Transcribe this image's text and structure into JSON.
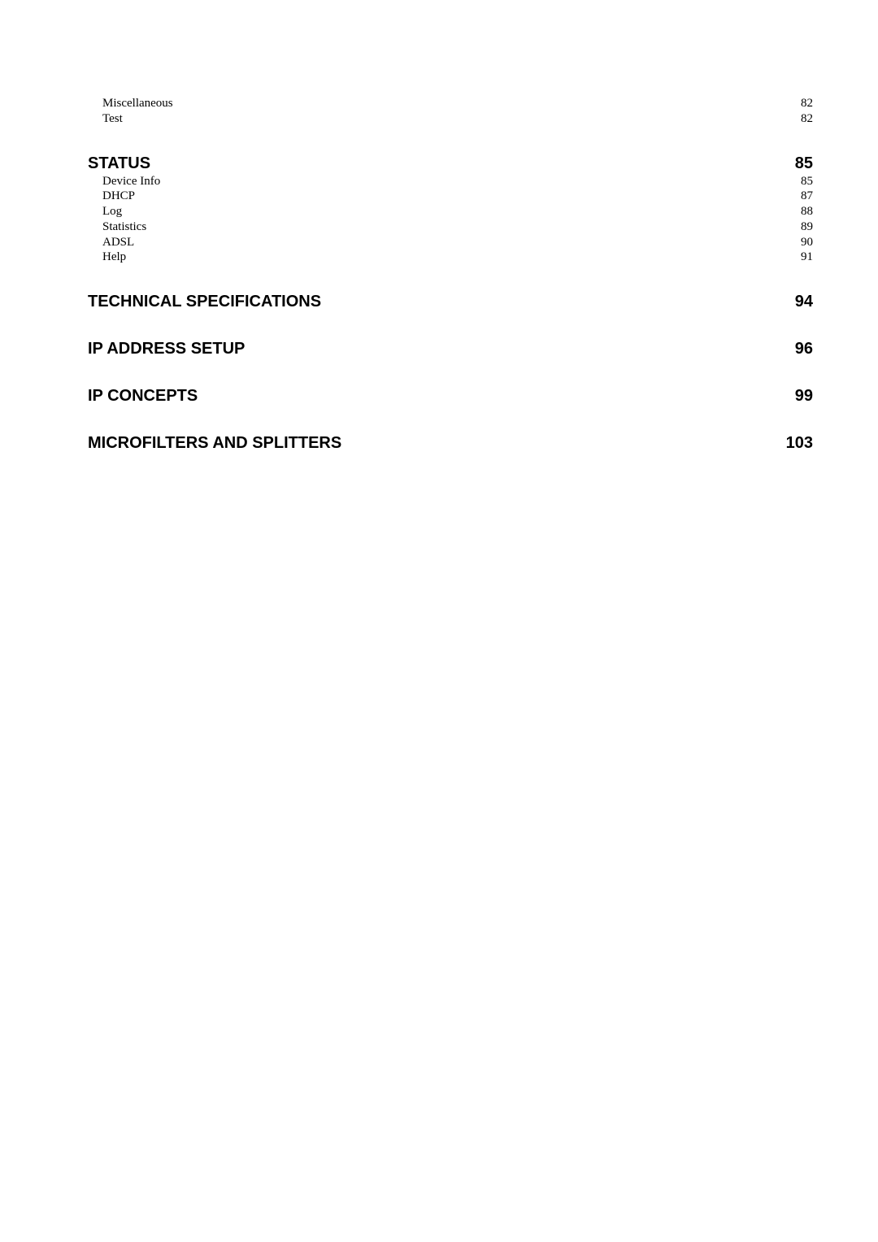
{
  "toc": {
    "orphan_subs": [
      {
        "label": "Miscellaneous",
        "page": "82"
      },
      {
        "label": "Test",
        "page": "82"
      }
    ],
    "sections": [
      {
        "heading": "STATUS",
        "page": "85",
        "subs": [
          {
            "label": "Device Info",
            "page": "85"
          },
          {
            "label": "DHCP",
            "page": "87"
          },
          {
            "label": "Log",
            "page": "88"
          },
          {
            "label": "Statistics",
            "page": "89"
          },
          {
            "label": "ADSL",
            "page": "90"
          },
          {
            "label": "Help",
            "page": "91"
          }
        ]
      },
      {
        "heading": "TECHNICAL SPECIFICATIONS",
        "page": "94",
        "subs": []
      },
      {
        "heading": "IP ADDRESS SETUP",
        "page": "96",
        "subs": []
      },
      {
        "heading": "IP CONCEPTS",
        "page": "99",
        "subs": []
      },
      {
        "heading": "MICROFILTERS AND SPLITTERS",
        "page": "103",
        "subs": []
      }
    ]
  },
  "style": {
    "text_color": "#000000",
    "background_color": "#ffffff",
    "heading_font": "Arial",
    "sub_font": "Times New Roman",
    "heading_fontsize": 20,
    "sub_fontsize": 15
  }
}
